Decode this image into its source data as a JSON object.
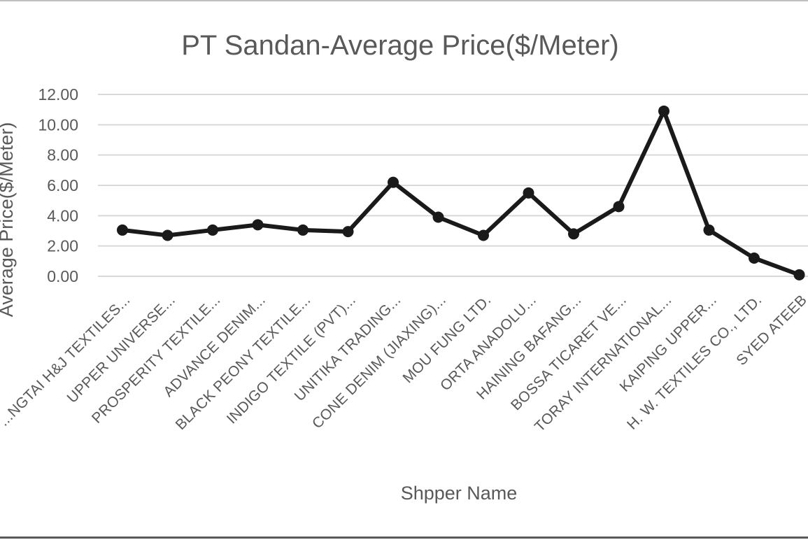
{
  "chart_data": {
    "type": "line",
    "title": "PT Sandan-Average Price($/Meter)",
    "xlabel": "Shpper Name",
    "ylabel": "Average Price($/Meter)",
    "ylim": [
      0,
      12
    ],
    "yticks": [
      "0.00",
      "2.00",
      "4.00",
      "6.00",
      "8.00",
      "10.00",
      "12.00"
    ],
    "grid": true,
    "legend": "none",
    "categories": [
      "...NGTAI H&J TEXTILES...",
      "UPPER UNIVERSE...",
      "PROSPERITY TEXTILE...",
      "ADVANCE DENIM...",
      "BLACK PEONY TEXTILE...",
      "INDIGO TEXTILE (PVT)...",
      "UNITIKA TRADING...",
      "CONE DENIM (JIAXING)...",
      "MOU FUNG LTD.",
      "ORTA ANADOLU...",
      "HAINING BAFANG...",
      "BOSSA TICARET VE...",
      "TORAY INTERNATIONAL...",
      "KAIPING UPPER...",
      "H. W. TEXTILES CO., LTD.",
      "SYED ATEEB"
    ],
    "series": [
      {
        "values": [
          3.05,
          2.7,
          3.05,
          3.4,
          3.05,
          2.95,
          6.2,
          3.9,
          2.7,
          5.5,
          2.8,
          4.6,
          10.9,
          3.05,
          1.2,
          0.1
        ]
      }
    ],
    "colors": {
      "line": "#1a1a1a",
      "marker": "#1a1a1a"
    }
  }
}
